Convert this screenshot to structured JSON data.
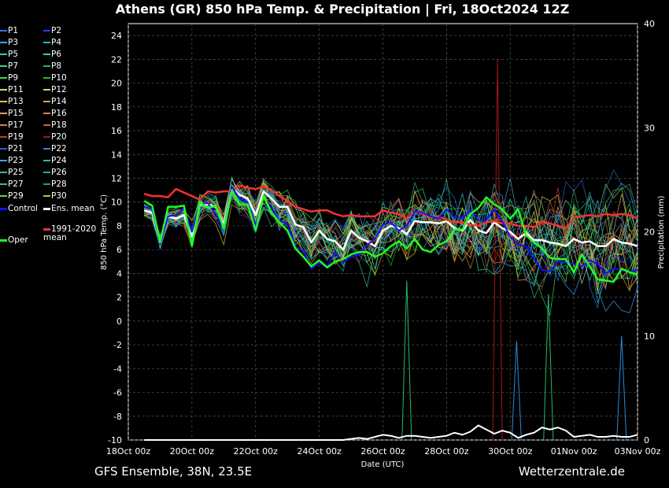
{
  "title": "Athens  (GR)  850 hPa Temp. & Precipitation | Fri, 18Oct2024 12Z",
  "footer": {
    "left": "GFS Ensemble, 38N, 23.5E",
    "right": "Wetterzentrale.de"
  },
  "legend": [
    {
      "label": "P1",
      "color": "#1f77ff"
    },
    {
      "label": "P2",
      "color": "#2040ff"
    },
    {
      "label": "P3",
      "color": "#3aa0ff"
    },
    {
      "label": "P4",
      "color": "#22b5d9"
    },
    {
      "label": "P5",
      "color": "#33c9c9"
    },
    {
      "label": "P6",
      "color": "#2ed3a0"
    },
    {
      "label": "P7",
      "color": "#3ad68c"
    },
    {
      "label": "P8",
      "color": "#22b86a"
    },
    {
      "label": "P9",
      "color": "#2fd94e"
    },
    {
      "label": "P10",
      "color": "#19c21e"
    },
    {
      "label": "P11",
      "color": "#c8e05a"
    },
    {
      "label": "P12",
      "color": "#e8d060"
    },
    {
      "label": "P13",
      "color": "#e6c24a"
    },
    {
      "label": "P14",
      "color": "#e3a23a"
    },
    {
      "label": "P15",
      "color": "#d9a070"
    },
    {
      "label": "P16",
      "color": "#d0884a"
    },
    {
      "label": "P17",
      "color": "#e07a3a"
    },
    {
      "label": "P18",
      "color": "#d05a3a"
    },
    {
      "label": "P19",
      "color": "#c83a2a"
    },
    {
      "label": "P20",
      "color": "#a01818"
    },
    {
      "label": "P21",
      "color": "#2a60d0"
    },
    {
      "label": "P22",
      "color": "#2a8ad8"
    },
    {
      "label": "P23",
      "color": "#4aa0d8"
    },
    {
      "label": "P24",
      "color": "#38b0c0"
    },
    {
      "label": "P25",
      "color": "#30c0a0"
    },
    {
      "label": "P26",
      "color": "#2ab090"
    },
    {
      "label": "P27",
      "color": "#30c080"
    },
    {
      "label": "P28",
      "color": "#28a070"
    },
    {
      "label": "P29",
      "color": "#70d040"
    },
    {
      "label": "P30",
      "color": "#c8c020"
    },
    {
      "label": "Control",
      "color": "#1010ff"
    },
    {
      "label": "Ens. mean",
      "color": "#ffffff"
    },
    {
      "label": "Oper",
      "color": "#20ff20"
    },
    {
      "label": "1991-2020 mean",
      "color": "#ff3030"
    }
  ],
  "chart_data": {
    "type": "line",
    "xlabel": "Date (UTC)",
    "ylabel": "850 hPa Temp. (°C)",
    "ylabel_right": "Precipitation (mm)",
    "x_ticks": [
      "18Oct 00z",
      "20Oct 00z",
      "22Oct 00z",
      "24Oct 00z",
      "26Oct 00z",
      "28Oct 00z",
      "30Oct 00z",
      "01Nov 00z",
      "03Nov 00z"
    ],
    "y_ticks": [
      -10,
      -8,
      -6,
      -4,
      -2,
      0,
      2,
      4,
      6,
      8,
      10,
      12,
      14,
      16,
      18,
      20,
      22,
      24
    ],
    "y2_ticks": [
      0,
      10,
      20,
      30,
      40
    ],
    "ylim": [
      -10,
      25
    ],
    "y2lim": [
      0,
      40
    ],
    "x_days": [
      0.5,
      0.75,
      1,
      1.25,
      1.5,
      1.75,
      2,
      2.25,
      2.5,
      2.75,
      3,
      3.25,
      3.5,
      3.75,
      4,
      4.25,
      4.5,
      4.75,
      5,
      5.25,
      5.5,
      5.75,
      6,
      6.25,
      6.5,
      6.75,
      7,
      7.25,
      7.5,
      7.75,
      8,
      8.25,
      8.5,
      8.75,
      9,
      9.25,
      9.5,
      9.75,
      10,
      10.25,
      10.5,
      10.75,
      11,
      11.25,
      11.5,
      11.75,
      12,
      12.25,
      12.5,
      12.75,
      13,
      13.25,
      13.5,
      13.75,
      14,
      14.25,
      14.5,
      14.75,
      15,
      15.25,
      15.5,
      15.75,
      16
    ],
    "series": [
      {
        "name": "Ens. mean",
        "color": "#ffffff",
        "width": 2.5,
        "values": [
          9.3,
          9.1,
          6.5,
          8.8,
          8.6,
          8.9,
          7.1,
          9.8,
          9.8,
          9.6,
          8.1,
          11.2,
          10.6,
          10.3,
          8.9,
          10.9,
          10.3,
          9.6,
          9.6,
          8.1,
          7.9,
          6.6,
          7.6,
          6.9,
          6.7,
          6.0,
          7.6,
          7.0,
          6.7,
          6.3,
          7.6,
          8.0,
          7.8,
          7.3,
          8.4,
          8.3,
          8.3,
          8.2,
          8.4,
          7.8,
          7.6,
          8.5,
          7.6,
          7.4,
          8.3,
          7.8,
          7.5,
          6.9,
          7.4,
          6.8,
          6.8,
          6.6,
          6.5,
          6.3,
          6.9,
          6.6,
          6.7,
          6.3,
          6.3,
          6.9,
          6.6,
          6.5,
          6.3
        ]
      },
      {
        "name": "1991-2020 mean",
        "color": "#ff3030",
        "width": 2.5,
        "values": [
          10.7,
          10.5,
          10.5,
          10.4,
          11.1,
          10.8,
          10.5,
          10.2,
          10.9,
          10.8,
          10.9,
          10.9,
          11.4,
          11.2,
          11.1,
          11.3,
          11.0,
          10.5,
          10.1,
          9.6,
          9.4,
          9.2,
          9.3,
          9.3,
          9.0,
          8.8,
          8.9,
          8.8,
          8.8,
          8.8,
          9.3,
          9.1,
          9.0,
          8.6,
          9.2,
          9.0,
          8.7,
          8.8,
          8.5,
          8.3,
          8.3,
          8.1,
          8.0,
          8.3,
          8.4,
          8.2,
          8.2,
          8.0,
          8.0,
          7.9,
          8.4,
          8.2,
          8.0,
          7.8,
          8.7,
          8.8,
          8.9,
          8.8,
          9.0,
          8.9,
          9.0,
          8.9,
          8.6
        ]
      },
      {
        "name": "Control",
        "color": "#1010ff",
        "width": 2,
        "values": [
          9.6,
          9.4,
          6.4,
          8.8,
          8.9,
          9.5,
          7.5,
          9.9,
          9.9,
          9.0,
          7.8,
          11.3,
          10.3,
          10.0,
          8.0,
          10.4,
          9.5,
          8.4,
          8.2,
          6.2,
          5.9,
          4.4,
          4.9,
          4.5,
          5.8,
          4.9,
          5.4,
          5.6,
          6.4,
          6.9,
          8.1,
          8.3,
          7.6,
          8.0,
          9.2,
          9.1,
          8.8,
          8.6,
          9.4,
          8.7,
          8.7,
          9.3,
          8.5,
          8.5,
          9.4,
          8.4,
          7.1,
          6.4,
          6.3,
          5.2,
          4.3,
          4.2,
          5.0,
          4.9,
          4.8,
          4.6,
          5.1,
          4.8,
          4.0,
          4.4,
          4.3,
          4.1,
          4.3
        ]
      },
      {
        "name": "Oper",
        "color": "#20ff20",
        "width": 2.5,
        "values": [
          10.1,
          9.7,
          6.6,
          9.6,
          9.6,
          9.7,
          6.3,
          10.0,
          9.5,
          9.7,
          7.8,
          11.0,
          9.8,
          9.8,
          7.6,
          10.5,
          9.1,
          8.3,
          7.6,
          6.1,
          5.4,
          4.6,
          5.1,
          4.5,
          5.0,
          5.2,
          5.6,
          5.8,
          5.8,
          5.4,
          5.7,
          6.3,
          6.7,
          6.1,
          6.9,
          6.0,
          5.8,
          6.4,
          6.7,
          7.7,
          7.7,
          9.0,
          9.5,
          10.4,
          9.8,
          9.4,
          8.6,
          9.4,
          7.2,
          6.6,
          6.1,
          5.3,
          5.2,
          5.2,
          4.1,
          5.6,
          4.6,
          3.5,
          3.4,
          3.3,
          4.4,
          4.1,
          3.9
        ]
      }
    ],
    "precip": {
      "ens_mean": [
        0,
        0,
        0,
        0,
        0,
        0,
        0,
        0,
        0,
        0,
        0,
        0,
        0,
        0,
        0,
        0,
        0,
        0,
        0,
        0,
        0,
        0,
        0,
        0,
        0,
        0,
        0.1,
        0.2,
        0.1,
        0.3,
        0.5,
        0.4,
        0.2,
        0.4,
        0.4,
        0.3,
        0.2,
        0.3,
        0.4,
        0.7,
        0.5,
        0.8,
        1.4,
        1.0,
        0.6,
        0.9,
        0.7,
        0.2,
        0.5,
        0.7,
        1.2,
        1.0,
        1.2,
        0.9,
        0.3,
        0.4,
        0.5,
        0.3,
        0.3,
        0.4,
        0.3,
        0.3,
        0.5
      ],
      "peaks_mm": [
        {
          "day": 11.6,
          "mm": 36.5
        },
        {
          "day": 8.75,
          "mm": 15.3
        },
        {
          "day": 12.2,
          "mm": 9.5
        },
        {
          "day": 13.2,
          "mm": 14.0
        },
        {
          "day": 15.5,
          "mm": 10.0
        }
      ]
    }
  }
}
